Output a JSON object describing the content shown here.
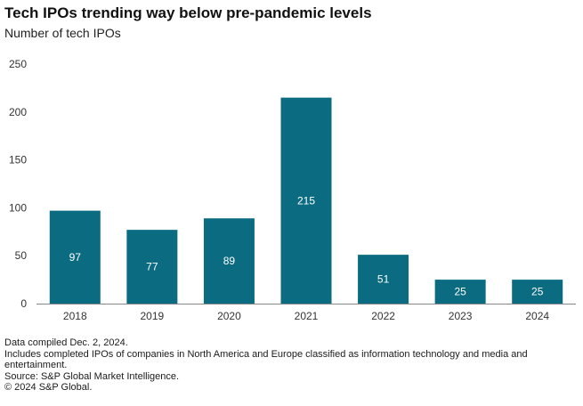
{
  "header": {
    "title": "Tech IPOs trending way below pre-pandemic levels",
    "subtitle": "Number of tech IPOs"
  },
  "chart_data": {
    "type": "bar",
    "categories": [
      "2018",
      "2019",
      "2020",
      "2021",
      "2022",
      "2023",
      "2024"
    ],
    "values": [
      97,
      77,
      89,
      215,
      51,
      25,
      25
    ],
    "data_labels": [
      "97",
      "77",
      "89",
      "215",
      "51",
      "25",
      "25"
    ],
    "y_ticks": [
      0,
      50,
      100,
      150,
      200,
      250
    ],
    "ylim": [
      0,
      250
    ],
    "xlabel": "",
    "ylabel": "",
    "grid": false,
    "bar_color": "#0a6b81",
    "label_color": "#ffffff"
  },
  "footnotes": [
    "Data compiled Dec. 2, 2024.",
    "Includes completed IPOs of companies in North America and Europe classified as information technology and media and entertainment.",
    "Source: S&P Global Market Intelligence.",
    "© 2024 S&P Global."
  ]
}
